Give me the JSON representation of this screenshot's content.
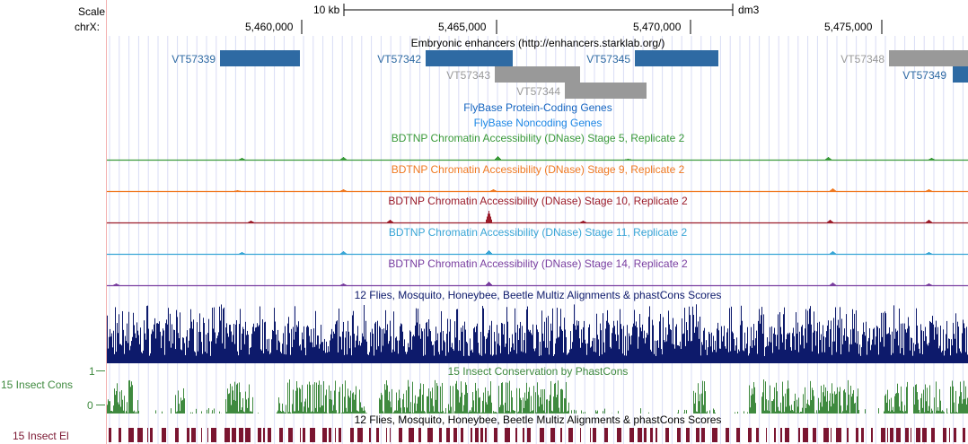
{
  "ruler": {
    "scale_label": "Scale",
    "chrom_label": "chrX:",
    "scale_text": "10 kb",
    "assembly": "dm3",
    "positions": [
      "5,460,000",
      "5,465,000",
      "5,470,000",
      "5,475,000"
    ]
  },
  "tracks": {
    "enhancers": {
      "title": "Embryonic enhancers (http://enhancers.starklab.org/)",
      "items": [
        {
          "name": "VT57339",
          "color": "#2e6aa3",
          "label_color": "#2e6aa3"
        },
        {
          "name": "VT57342",
          "color": "#2e6aa3",
          "label_color": "#2e6aa3"
        },
        {
          "name": "VT57343",
          "color": "#999999",
          "label_color": "#999999"
        },
        {
          "name": "VT57344",
          "color": "#999999",
          "label_color": "#999999"
        },
        {
          "name": "VT57345",
          "color": "#2e6aa3",
          "label_color": "#2e6aa3"
        },
        {
          "name": "VT57348",
          "color": "#999999",
          "label_color": "#999999"
        },
        {
          "name": "VT57349",
          "color": "#2e6aa3",
          "label_color": "#2e6aa3"
        }
      ]
    },
    "protein_coding": {
      "title": "FlyBase Protein-Coding Genes",
      "color": "#1565c0"
    },
    "noncoding": {
      "title": "FlyBase Noncoding Genes",
      "color": "#1e88e5"
    },
    "dnase": [
      {
        "title": "BDTNP Chromatin Accessibility (DNase) Stage 5, Replicate 2",
        "color": "#3a9a3a"
      },
      {
        "title": "BDTNP Chromatin Accessibility (DNase) Stage 9, Replicate 2",
        "color": "#f07a22"
      },
      {
        "title": "BDTNP Chromatin Accessibility (DNase) Stage 10, Replicate 2",
        "color": "#9b1c2a"
      },
      {
        "title": "BDTNP Chromatin Accessibility (DNase) Stage 11, Replicate 2",
        "color": "#39a6d6"
      },
      {
        "title": "BDTNP Chromatin Accessibility (DNase) Stage 14, Replicate 2",
        "color": "#7a3fa0"
      }
    ],
    "multiz": {
      "title": "12 Flies, Mosquito, Honeybee, Beetle Multiz Alignments & phastCons Scores",
      "color": "#0d1a6b"
    },
    "phastcons": {
      "title": "15 Insect Conservation by PhastCons",
      "left_label": "15 Insect Cons",
      "axis_max": "1",
      "axis_min": "0",
      "color": "#3f8a3f",
      "label_color": "#3f8a3f"
    },
    "elements": {
      "title": "12 Flies, Mosquito, Honeybee, Beetle Multiz Alignments & phastCons Scores",
      "left_label": "15 Insect El",
      "color": "#7a1530",
      "label_color": "#7a1530"
    }
  }
}
